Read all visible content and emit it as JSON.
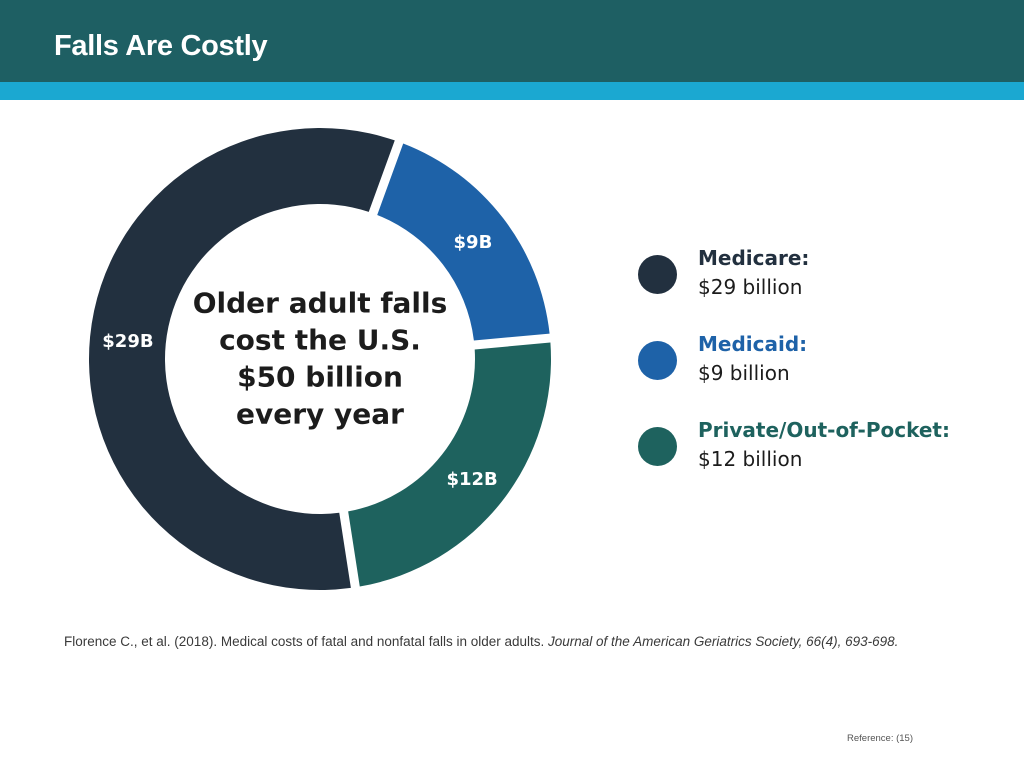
{
  "slide": {
    "title": "Falls Are Costly",
    "citation_plain": "Florence C., et al. (2018). Medical costs of fatal and nonfatal falls in older adults. ",
    "citation_italic": "Journal of the American Geriatrics Society, 66(4), 693-698.",
    "reference": "Reference: (15)"
  },
  "colors": {
    "header": "#1e5f63",
    "stripe": "#1ba8d1",
    "medicare": "#22303f",
    "medicaid": "#1e62a8",
    "private": "#1e625e"
  },
  "chart_data": {
    "type": "pie",
    "variant": "donut",
    "center_text": [
      "Older adult falls",
      "cost the U.S.",
      "$50 billion",
      "every year"
    ],
    "slices": [
      {
        "name": "Medicare",
        "value": 29,
        "label": "$29B",
        "color": "#22303f"
      },
      {
        "name": "Medicaid",
        "value": 9,
        "label": "$9B",
        "color": "#1e62a8"
      },
      {
        "name": "Private/Out-of-Pocket",
        "value": 12,
        "label": "$12B",
        "color": "#1e625e"
      }
    ],
    "legend_position": "right",
    "legend": [
      {
        "name": "Medicare:",
        "value": "$29 billion",
        "color": "#22303f",
        "name_color": "#22303f"
      },
      {
        "name": "Medicaid:",
        "value": "$9 billion",
        "color": "#1e62a8",
        "name_color": "#1e62a8"
      },
      {
        "name": "Private/Out-of-Pocket:",
        "value": "$12 billion",
        "color": "#1e625e",
        "name_color": "#1e625e"
      }
    ]
  }
}
